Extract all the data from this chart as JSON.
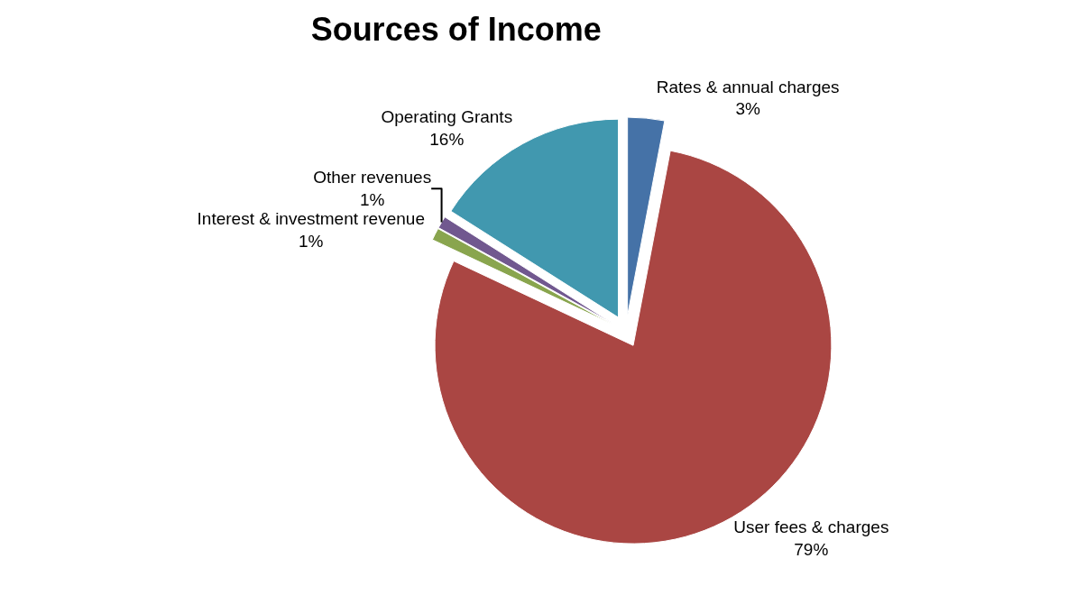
{
  "chart_data": {
    "type": "pie",
    "title": "Sources of Income",
    "categories": [
      "Rates & annual charges",
      "User fees & charges",
      "Interest & investment revenue",
      "Other revenues",
      "Operating Grants"
    ],
    "values": [
      3,
      79,
      1,
      1,
      16
    ],
    "value_labels": [
      "3%",
      "79%",
      "1%",
      "1%",
      "16%"
    ],
    "colors": [
      "#4572a7",
      "#aa4643",
      "#89a54e",
      "#71588f",
      "#4198af"
    ],
    "legend": false
  }
}
